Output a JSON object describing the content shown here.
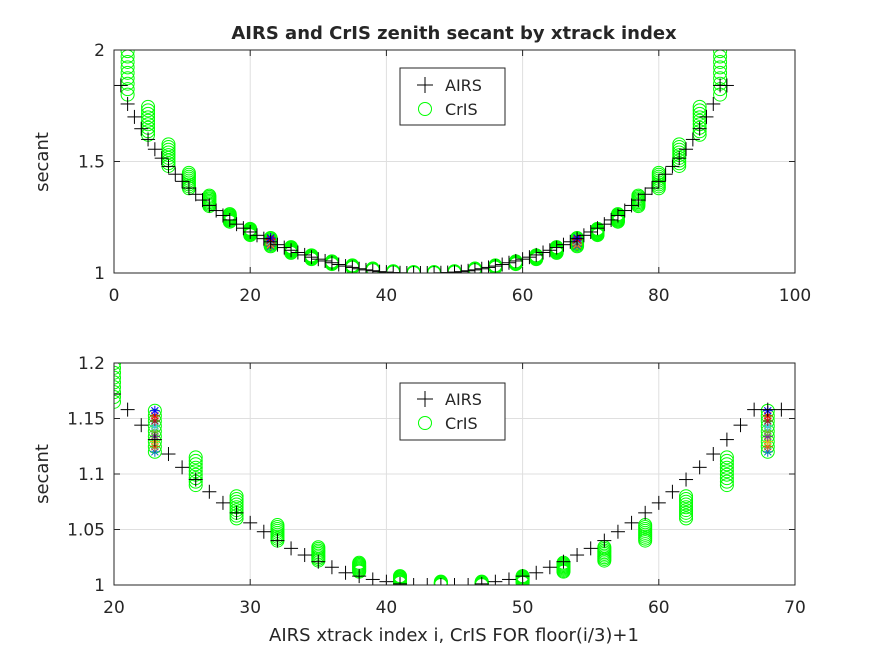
{
  "chart_data": [
    {
      "type": "scatter",
      "title": "AIRS and CrIS zenith secant by xtrack index",
      "xlabel": "",
      "ylabel": "secant",
      "xlim": [
        0,
        100
      ],
      "ylim": [
        1,
        2
      ],
      "xticks": [
        "0",
        "20",
        "40",
        "60",
        "80",
        "100"
      ],
      "yticks": [
        "1",
        "1.5",
        "2"
      ],
      "grid": true,
      "legend": {
        "placement": "top-center",
        "entries": [
          "AIRS",
          "CrIS"
        ]
      },
      "series": [
        {
          "name": "AIRS",
          "marker": "plus",
          "color": "#000000",
          "x": [
            1,
            2,
            3,
            4,
            5,
            6,
            7,
            8,
            9,
            10,
            11,
            12,
            13,
            14,
            15,
            16,
            17,
            18,
            19,
            20,
            21,
            22,
            23,
            24,
            25,
            26,
            27,
            28,
            29,
            30,
            31,
            32,
            33,
            34,
            35,
            36,
            37,
            38,
            39,
            40,
            41,
            42,
            43,
            44,
            45,
            46,
            47,
            48,
            49,
            50,
            51,
            52,
            53,
            54,
            55,
            56,
            57,
            58,
            59,
            60,
            61,
            62,
            63,
            64,
            65,
            66,
            67,
            68,
            69,
            70,
            71,
            72,
            73,
            74,
            75,
            76,
            77,
            78,
            79,
            80,
            81,
            82,
            83,
            84,
            85,
            86,
            87,
            88,
            89,
            90
          ],
          "y": [
            1.841,
            1.758,
            1.7,
            1.647,
            1.599,
            1.555,
            1.515,
            1.478,
            1.443,
            1.411,
            1.381,
            1.353,
            1.327,
            1.303,
            1.28,
            1.258,
            1.238,
            1.219,
            1.201,
            1.184,
            1.169,
            1.154,
            1.14,
            1.127,
            1.114,
            1.102,
            1.092,
            1.081,
            1.071,
            1.062,
            1.054,
            1.046,
            1.038,
            1.031,
            1.025,
            1.019,
            1.014,
            1.01,
            1.006,
            1.004,
            1.002,
            1.001,
            1.0,
            1.0,
            1.0,
            1.0,
            1.0,
            1.001,
            1.002,
            1.004,
            1.006,
            1.01,
            1.014,
            1.019,
            1.025,
            1.031,
            1.038,
            1.046,
            1.054,
            1.062,
            1.071,
            1.081,
            1.092,
            1.102,
            1.114,
            1.127,
            1.14,
            1.154,
            1.169,
            1.184,
            1.201,
            1.219,
            1.238,
            1.258,
            1.28,
            1.303,
            1.327,
            1.353,
            1.381,
            1.411,
            1.443,
            1.478,
            1.515,
            1.555,
            1.599,
            1.647,
            1.7,
            1.758,
            1.841,
            1.841
          ]
        },
        {
          "name": "CrIS",
          "marker": "circle",
          "color": "#00ff00",
          "x": [
            2,
            5,
            8,
            11,
            14,
            17,
            20,
            23,
            26,
            29,
            32,
            35,
            38,
            41,
            44,
            47,
            50,
            53,
            56,
            59,
            62,
            65,
            68,
            71,
            74,
            77,
            80,
            83,
            86,
            89
          ],
          "y_top": [
            1.995,
            1.745,
            1.577,
            1.449,
            1.347,
            1.264,
            1.198,
            1.157,
            1.116,
            1.079,
            1.052,
            1.034,
            1.02,
            1.008,
            1.004,
            1.004,
            1.008,
            1.02,
            1.034,
            1.052,
            1.079,
            1.116,
            1.157,
            1.198,
            1.264,
            1.347,
            1.449,
            1.577,
            1.745,
            1.995
          ],
          "y_bottom": [
            1.8,
            1.62,
            1.48,
            1.38,
            1.3,
            1.23,
            1.17,
            1.12,
            1.09,
            1.062,
            1.04,
            1.024,
            1.013,
            1.003,
            1.0,
            1.0,
            1.003,
            1.013,
            1.024,
            1.04,
            1.062,
            1.09,
            1.12,
            1.17,
            1.23,
            1.3,
            1.38,
            1.48,
            1.62,
            1.8
          ]
        }
      ]
    },
    {
      "type": "scatter",
      "title": "",
      "xlabel": "AIRS xtrack index i, CrIS FOR floor(i/3)+1",
      "ylabel": "secant",
      "xlim": [
        20,
        70
      ],
      "ylim": [
        1,
        1.2
      ],
      "xticks": [
        "20",
        "30",
        "40",
        "50",
        "60",
        "70"
      ],
      "yticks": [
        "1",
        "1.05",
        "1.1",
        "1.15",
        "1.2"
      ],
      "grid": true,
      "legend": {
        "placement": "top-center",
        "entries": [
          "AIRS",
          "CrIS"
        ]
      },
      "series": [
        {
          "name": "AIRS",
          "marker": "plus",
          "color": "#000000",
          "x": [
            20,
            21,
            22,
            23,
            24,
            25,
            26,
            27,
            28,
            29,
            30,
            31,
            32,
            33,
            34,
            35,
            36,
            37,
            38,
            39,
            40,
            41,
            42,
            43,
            44,
            45,
            46,
            47,
            48,
            49,
            50,
            51,
            52,
            53,
            54,
            55,
            56,
            57,
            58,
            59,
            60,
            61,
            62,
            63,
            64,
            65,
            66,
            67,
            68,
            69,
            70
          ],
          "y": [
            1.172,
            1.158,
            1.144,
            1.131,
            1.118,
            1.106,
            1.095,
            1.084,
            1.074,
            1.065,
            1.056,
            1.048,
            1.04,
            1.033,
            1.027,
            1.021,
            1.016,
            1.011,
            1.008,
            1.005,
            1.003,
            1.001,
            1.0,
            1.0,
            1.0,
            1.0,
            1.0,
            1.001,
            1.003,
            1.005,
            1.008,
            1.011,
            1.016,
            1.021,
            1.027,
            1.033,
            1.04,
            1.048,
            1.056,
            1.065,
            1.074,
            1.084,
            1.095,
            1.106,
            1.118,
            1.131,
            1.144,
            1.158,
            1.158,
            1.158,
            1.158
          ]
        },
        {
          "name": "CrIS",
          "marker": "circle",
          "color": "#00ff00",
          "x": [
            20,
            23,
            26,
            29,
            32,
            35,
            38,
            41,
            44,
            47,
            50,
            53,
            56,
            59,
            62,
            65,
            68
          ],
          "y_top": [
            1.2,
            1.157,
            1.115,
            1.08,
            1.054,
            1.034,
            1.02,
            1.008,
            1.003,
            1.003,
            1.008,
            1.02,
            1.034,
            1.054,
            1.08,
            1.115,
            1.157
          ],
          "y_bottom": [
            1.165,
            1.12,
            1.09,
            1.06,
            1.04,
            1.022,
            1.012,
            1.002,
            1.0,
            1.0,
            1.002,
            1.012,
            1.022,
            1.04,
            1.06,
            1.09,
            1.12
          ]
        }
      ]
    }
  ]
}
